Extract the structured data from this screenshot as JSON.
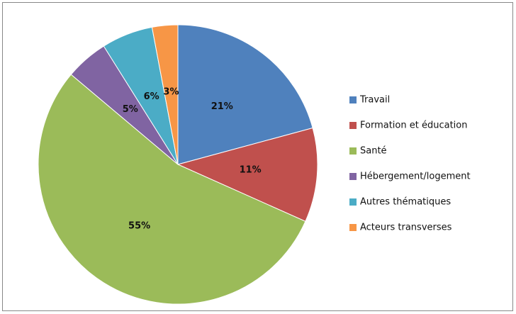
{
  "chart_data": {
    "type": "pie",
    "categories": [
      "Travail",
      "Formation et éducation",
      "Santé",
      "Hébergement/logement",
      "Autres thématiques",
      "Acteurs transverses"
    ],
    "values": [
      21,
      11,
      55,
      5,
      6,
      3
    ],
    "value_labels": [
      "21%",
      "11%",
      "55%",
      "5%",
      "6%",
      "3%"
    ],
    "colors": [
      "#4f81bd",
      "#c0504d",
      "#9bbb59",
      "#8064a2",
      "#4bacc6",
      "#f79646"
    ],
    "legend": "right"
  }
}
